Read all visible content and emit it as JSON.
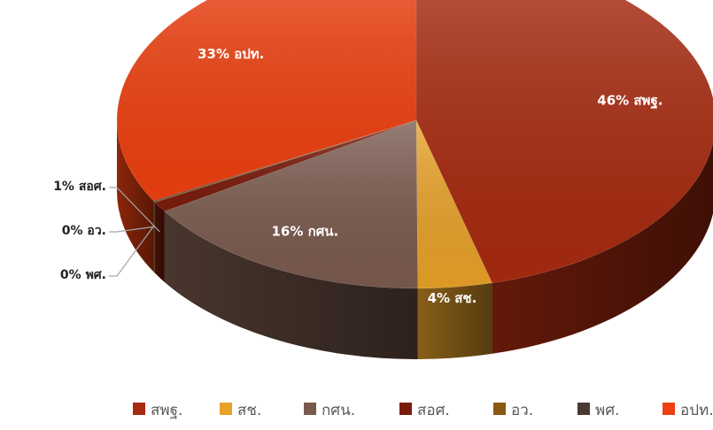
{
  "chart_data": {
    "type": "pie",
    "style": "3d",
    "title": "",
    "categories": [
      "สพฐ.",
      "สช.",
      "กศน.",
      "สอศ.",
      "อว.",
      "พศ.",
      "อปท."
    ],
    "values": [
      46,
      4,
      16,
      1,
      0,
      0,
      33
    ],
    "unit": "%",
    "data_labels": [
      "46% สพฐ.",
      "4% สช.",
      "16% กศน.",
      "1% สอศ.",
      "0% อว.",
      "0% พศ.",
      "33% อปท."
    ],
    "colors": [
      "#a82a10",
      "#e8a128",
      "#7a5a4e",
      "#7a1c0c",
      "#8a5a12",
      "#4a3a34",
      "#ee4010"
    ],
    "legend_position": "bottom"
  }
}
